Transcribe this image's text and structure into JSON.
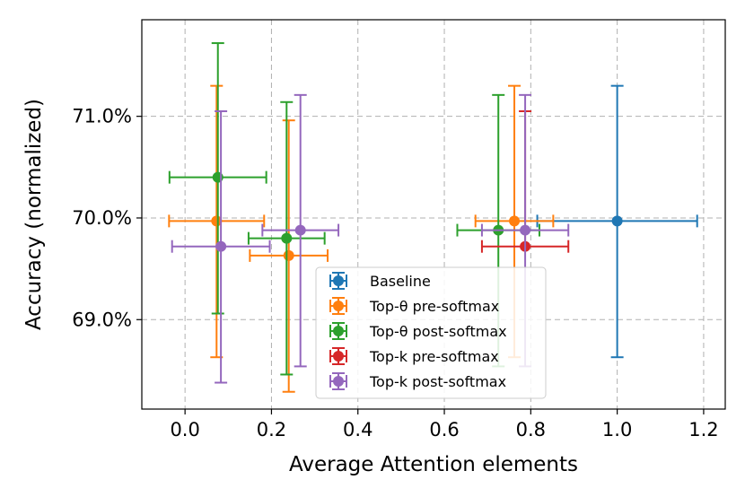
{
  "chart_data": {
    "type": "scatter",
    "title": "",
    "xlabel": "Average Attention elements",
    "ylabel": "Accuracy (normalized)",
    "xlim": [
      -0.1,
      1.25
    ],
    "ylim": [
      68.12,
      71.95
    ],
    "xticks": [
      0.0,
      0.2,
      0.4,
      0.6,
      0.8,
      1.0,
      1.2
    ],
    "xtick_labels": [
      "0.0",
      "0.2",
      "0.4",
      "0.6",
      "0.8",
      "1.0",
      "1.2"
    ],
    "yticks": [
      69.0,
      70.0,
      71.0
    ],
    "ytick_labels": [
      "69.0%",
      "70.0%",
      "71.0%"
    ],
    "grid": true,
    "legend_position": "bottom-center",
    "series": [
      {
        "name": "Baseline",
        "color": "#1f77b4",
        "points": [
          {
            "x": 1.0,
            "y": 69.97,
            "xerr": 0.185,
            "yerr": [
              1.34,
              1.33
            ]
          }
        ]
      },
      {
        "name": "Top-θ pre-softmax",
        "color": "#ff7f0e",
        "points": [
          {
            "x": 0.073,
            "y": 69.97,
            "xerr": 0.11,
            "yerr": [
              1.34,
              1.33
            ]
          },
          {
            "x": 0.24,
            "y": 69.63,
            "xerr": 0.09,
            "yerr": [
              1.34,
              1.33
            ]
          },
          {
            "x": 0.762,
            "y": 69.97,
            "xerr": 0.09,
            "yerr": [
              1.34,
              1.33
            ]
          }
        ]
      },
      {
        "name": "Top-θ post-softmax",
        "color": "#2ca02c",
        "points": [
          {
            "x": 0.076,
            "y": 70.4,
            "xerr": 0.112,
            "yerr": [
              1.34,
              1.32
            ]
          },
          {
            "x": 0.235,
            "y": 69.8,
            "xerr": 0.088,
            "yerr": [
              1.34,
              1.34
            ]
          },
          {
            "x": 0.725,
            "y": 69.88,
            "xerr": 0.095,
            "yerr": [
              1.34,
              1.33
            ]
          }
        ]
      },
      {
        "name": "Top-k pre-softmax",
        "color": "#d62728",
        "points": [
          {
            "x": 0.787,
            "y": 69.72,
            "xerr": 0.1,
            "yerr": [
              0.0,
              1.33
            ]
          }
        ]
      },
      {
        "name": "Top-k post-softmax",
        "color": "#9467bd",
        "points": [
          {
            "x": 0.083,
            "y": 69.72,
            "xerr": 0.113,
            "yerr": [
              1.34,
              1.33
            ]
          },
          {
            "x": 0.267,
            "y": 69.88,
            "xerr": 0.088,
            "yerr": [
              1.34,
              1.33
            ]
          },
          {
            "x": 0.787,
            "y": 69.88,
            "xerr": 0.1,
            "yerr": [
              1.34,
              1.33
            ]
          }
        ]
      }
    ]
  }
}
